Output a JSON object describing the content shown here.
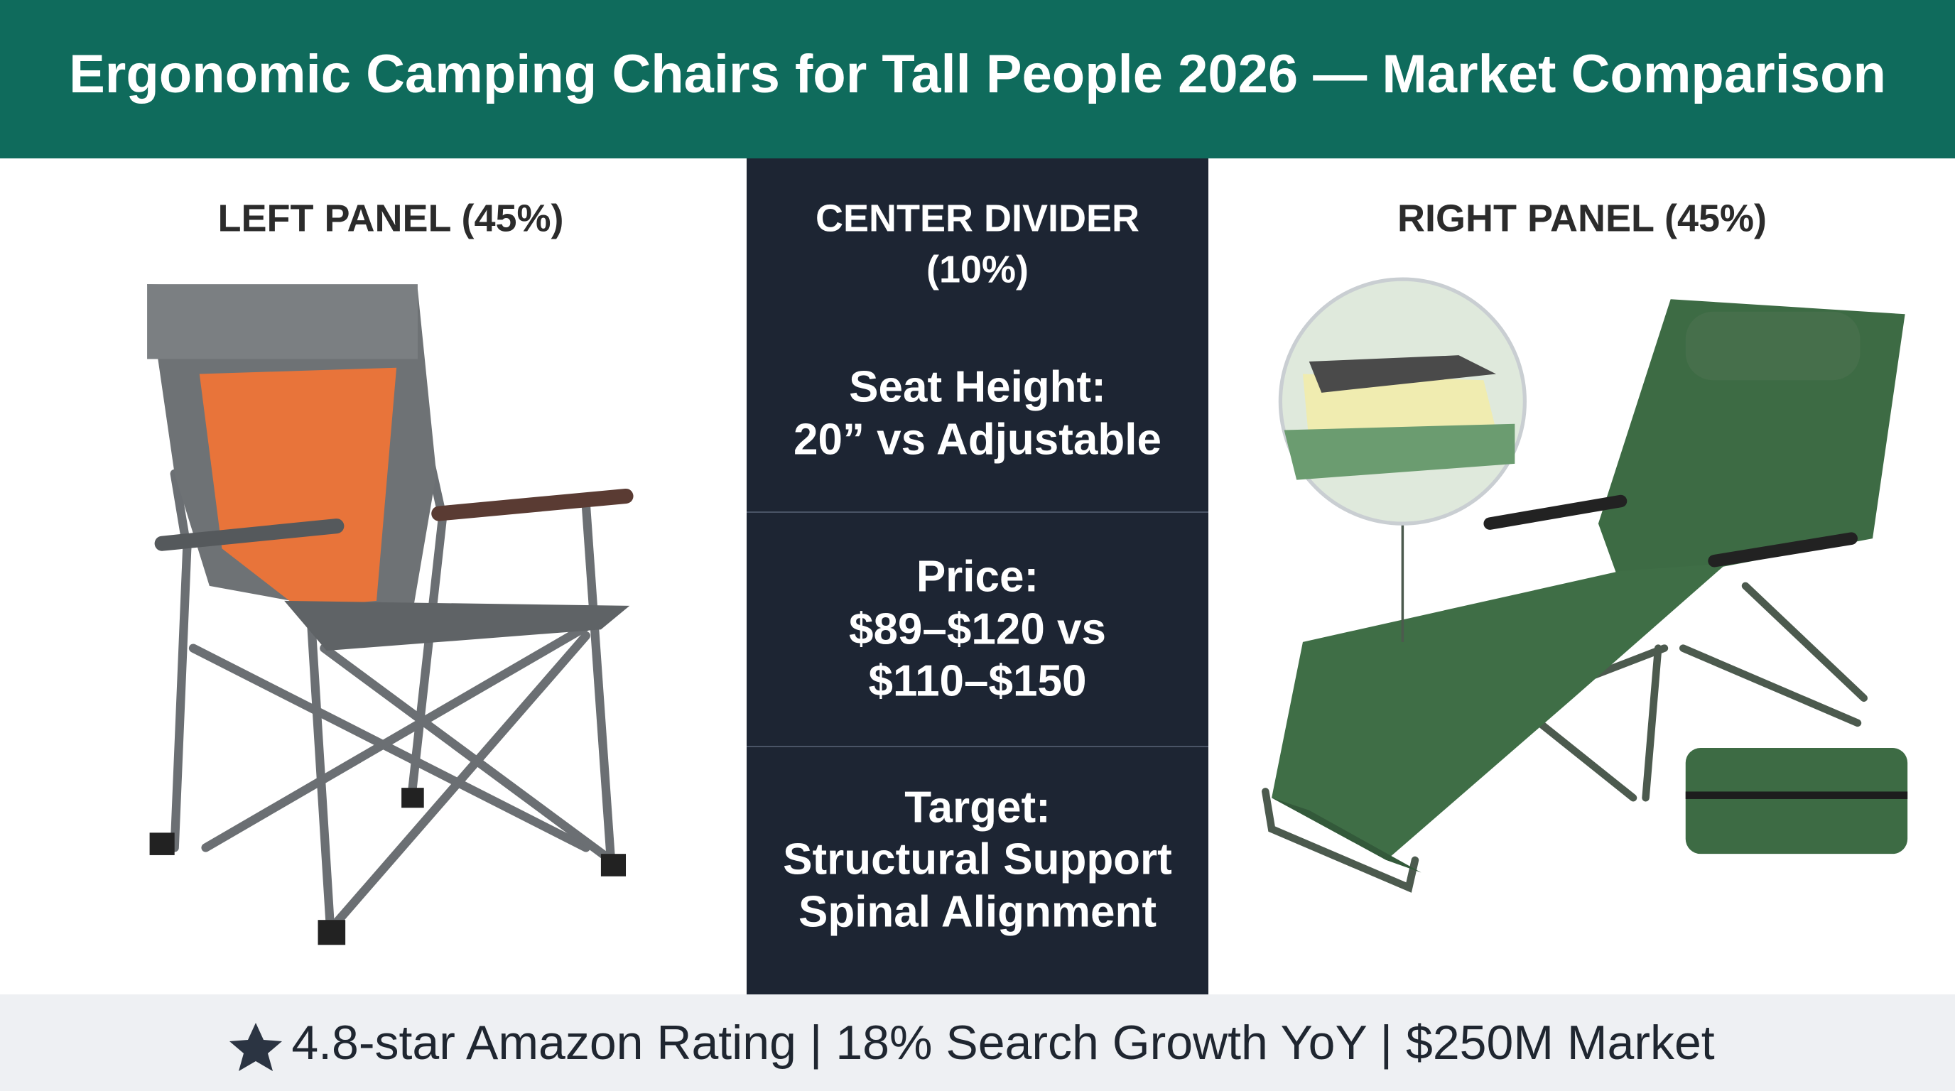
{
  "header": {
    "title": "Ergonomic Camping Chairs for Tall People 2026 — Market Comparison"
  },
  "left_panel": {
    "label": "LEFT PANEL (45%)"
  },
  "center_divider": {
    "label": [
      "CENTER DIVIDER",
      "(10%)"
    ],
    "sections": [
      {
        "lines": [
          "Seat Height:",
          "20” vs Adjustable"
        ]
      },
      {
        "lines": [
          "Price:",
          "$89–$120 vs",
          "$110–$150"
        ]
      },
      {
        "lines": [
          "Target:",
          "Structural Support",
          "Spinal Alignment"
        ]
      }
    ]
  },
  "right_panel": {
    "label": "RIGHT PANEL (45%)"
  },
  "footer": {
    "text": "4.8-star Amazon Rating | 18% Search Growth YoY | $250M Market"
  }
}
